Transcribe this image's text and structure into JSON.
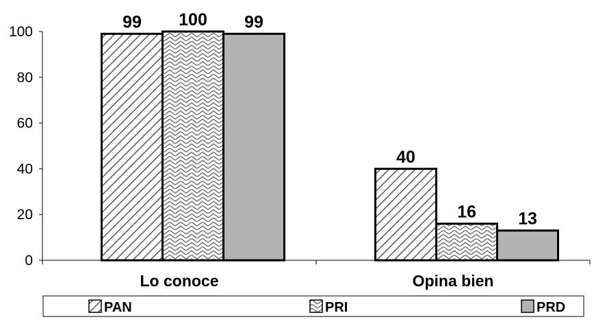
{
  "chart_data": {
    "type": "bar",
    "categories": [
      "Lo conoce",
      "Opina bien"
    ],
    "series": [
      {
        "name": "PAN",
        "values": [
          99,
          40
        ],
        "pattern": "diagonal-hatch",
        "color": "#ffffff"
      },
      {
        "name": "PRI",
        "values": [
          100,
          16
        ],
        "pattern": "zigzag",
        "color": "#ffffff"
      },
      {
        "name": "PRD",
        "values": [
          99,
          13
        ],
        "pattern": "solid",
        "color": "#b3b3b3"
      }
    ],
    "ylim": [
      0,
      100
    ],
    "yticks": [
      "0",
      "20",
      "40",
      "60",
      "80",
      "100"
    ],
    "value_labels": [
      [
        "99",
        "40"
      ],
      [
        "100",
        "16"
      ],
      [
        "99",
        "13"
      ]
    ],
    "grid": false,
    "legend_position": "bottom"
  },
  "colors": {
    "bar_outline": "#000000",
    "hatch_line": "#555555",
    "solid_fill": "#b3b3b3"
  }
}
